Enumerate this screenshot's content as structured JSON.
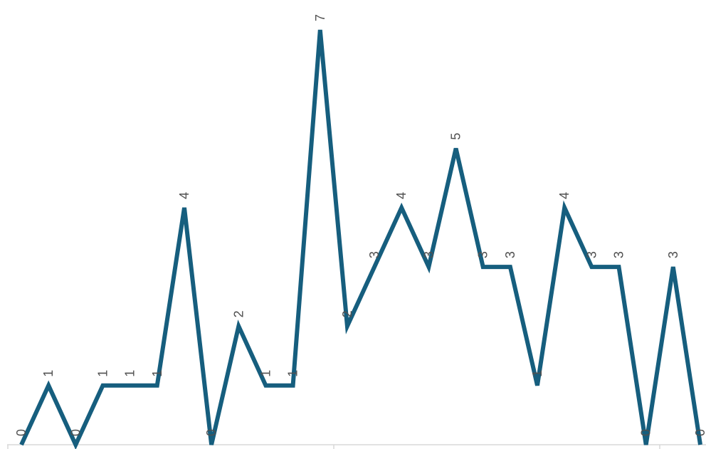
{
  "chart_data": {
    "type": "line",
    "title": "",
    "xlabel": "",
    "ylabel": "",
    "ylim": [
      0,
      7
    ],
    "grid": false,
    "legend": "none",
    "line_color": "#165E7E",
    "axis_color": "#D9D9D9",
    "label_color": "#505050",
    "series": [
      {
        "values": [
          0,
          1,
          0,
          1,
          1,
          1,
          4,
          0,
          2,
          1,
          1,
          7,
          2,
          3,
          4,
          3,
          5,
          3,
          3,
          1,
          4,
          3,
          3,
          0,
          3,
          0
        ],
        "labels": [
          "0",
          "1",
          "0",
          "1",
          "1",
          "1",
          "4",
          "0",
          "2",
          "1",
          "1",
          "7",
          "2",
          "3",
          "4",
          "3",
          "5",
          "3",
          "3",
          "1",
          "4",
          "3",
          "3",
          "0",
          "3",
          "0"
        ]
      }
    ]
  }
}
